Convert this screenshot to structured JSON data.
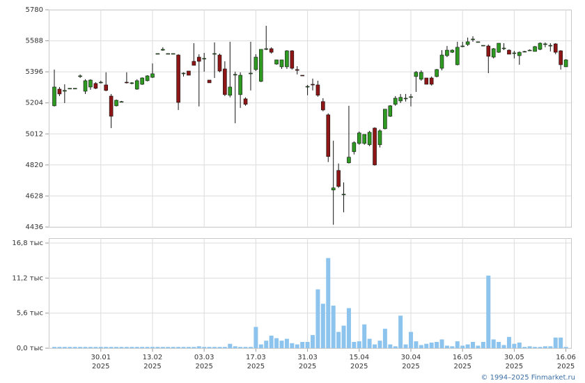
{
  "chart_data": [
    {
      "type": "candlestick",
      "up_color": "#2e9a22",
      "down_color": "#8e1616",
      "grid": true,
      "ylim": [
        4436,
        5780
      ],
      "yticks": [
        4436,
        4628,
        4820,
        5012,
        5204,
        5396,
        5588,
        5780
      ],
      "categories": [
        null,
        null,
        null,
        null,
        null,
        null,
        null,
        null,
        null,
        "30.01",
        null,
        null,
        null,
        null,
        null,
        null,
        null,
        null,
        null,
        "13.02",
        null,
        null,
        null,
        null,
        null,
        null,
        null,
        null,
        null,
        "03.03",
        null,
        null,
        null,
        null,
        null,
        null,
        null,
        null,
        null,
        "17.03",
        null,
        null,
        null,
        null,
        null,
        null,
        null,
        null,
        null,
        "31.03",
        null,
        null,
        null,
        null,
        null,
        null,
        null,
        null,
        null,
        "15.04",
        null,
        null,
        null,
        null,
        null,
        null,
        null,
        null,
        null,
        "30.04",
        null,
        null,
        null,
        null,
        null,
        null,
        null,
        null,
        null,
        "16.05",
        null,
        null,
        null,
        null,
        null,
        null,
        null,
        null,
        null,
        "30.05",
        null,
        null,
        null,
        null,
        null,
        null,
        null,
        null,
        null,
        "16.06"
      ],
      "year": "2025",
      "open": [
        5186,
        5289,
        5276,
        5294,
        5294,
        5367,
        5276,
        5302,
        5324,
        5328,
        5315,
        5246,
        5186,
        5212,
        5332,
        5328,
        5289,
        5319,
        5341,
        5362,
        5509,
        5530,
        5509,
        5509,
        5500,
        5384,
        5401,
        5461,
        5487,
        5479,
        5345,
        5509,
        5500,
        5414,
        5251,
        5380,
        5255,
        5229,
        5388,
        5410,
        5337,
        5539,
        5539,
        5444,
        5427,
        5427,
        5526,
        5410,
        5375,
        5306,
        5319,
        5315,
        5212,
        5130,
        4665,
        4786,
        4639,
        4833,
        4902,
        4953,
        4953,
        4945,
        5048,
        4945,
        5044,
        5121,
        5195,
        5216,
        5233,
        5242,
        5367,
        5350,
        5358,
        5358,
        5367,
        5418,
        5496,
        5517,
        5440,
        5556,
        5565,
        5599,
        5582,
        5560,
        5556,
        5487,
        5517,
        5543,
        5530,
        5513,
        5496,
        5522,
        5530,
        5522,
        5535,
        5569,
        5560,
        5569,
        5526,
        5427
      ],
      "high": [
        5410,
        5302,
        5319,
        5294,
        5294,
        5380,
        5350,
        5350,
        5332,
        5341,
        5393,
        5259,
        5225,
        5216,
        5393,
        5332,
        5350,
        5362,
        5375,
        5448,
        5509,
        5548,
        5509,
        5509,
        5505,
        5393,
        5401,
        5573,
        5505,
        5513,
        5345,
        5578,
        5509,
        5461,
        5582,
        5397,
        5393,
        5238,
        5582,
        5505,
        5535,
        5681,
        5548,
        5470,
        5470,
        5530,
        5530,
        5431,
        5375,
        5315,
        5354,
        5341,
        5233,
        5139,
        4970,
        4829,
        4712,
        5186,
        4966,
        5027,
        5009,
        5031,
        5053,
        5040,
        5165,
        5190,
        5246,
        5259,
        5259,
        5259,
        5401,
        5405,
        5358,
        5367,
        5414,
        5530,
        5556,
        5535,
        5582,
        5582,
        5608,
        5616,
        5582,
        5560,
        5565,
        5543,
        5573,
        5573,
        5535,
        5526,
        5522,
        5526,
        5535,
        5556,
        5578,
        5578,
        5573,
        5573,
        5530,
        5474
      ],
      "low": [
        5182,
        5246,
        5203,
        5294,
        5294,
        5358,
        5259,
        5285,
        5289,
        5324,
        5276,
        5048,
        5182,
        5212,
        5324,
        5319,
        5285,
        5315,
        5337,
        5358,
        5509,
        5526,
        5509,
        5509,
        5160,
        5367,
        5375,
        5436,
        5182,
        5397,
        5328,
        5358,
        5393,
        5246,
        5238,
        5078,
        5173,
        5186,
        5281,
        5401,
        5332,
        5530,
        5509,
        5440,
        5414,
        5414,
        5410,
        5380,
        5371,
        5251,
        5281,
        5242,
        5152,
        4838,
        4450,
        4678,
        4527,
        4829,
        4885,
        4945,
        4945,
        4936,
        4816,
        4928,
        5040,
        5117,
        5186,
        5203,
        5212,
        5182,
        5272,
        5341,
        5319,
        5311,
        5362,
        5405,
        5487,
        5513,
        5436,
        5548,
        5556,
        5582,
        5582,
        5560,
        5388,
        5479,
        5513,
        5530,
        5505,
        5479,
        5440,
        5517,
        5526,
        5522,
        5530,
        5548,
        5522,
        5505,
        5410,
        5427
      ],
      "close": [
        5302,
        5259,
        5281,
        5294,
        5294,
        5371,
        5341,
        5345,
        5294,
        5332,
        5281,
        5121,
        5220,
        5212,
        5328,
        5328,
        5341,
        5358,
        5371,
        5384,
        5509,
        5535,
        5509,
        5509,
        5207,
        5388,
        5375,
        5436,
        5461,
        5479,
        5328,
        5509,
        5401,
        5255,
        5302,
        5380,
        5375,
        5195,
        5388,
        5487,
        5535,
        5539,
        5517,
        5470,
        5470,
        5526,
        5418,
        5405,
        5371,
        5306,
        5315,
        5251,
        5160,
        4872,
        4678,
        4687,
        4639,
        4868,
        4958,
        5018,
        5009,
        5022,
        4820,
        5031,
        5165,
        5186,
        5233,
        5238,
        5233,
        5242,
        5393,
        5393,
        5319,
        5319,
        5410,
        5500,
        5530,
        5530,
        5548,
        5556,
        5582,
        5599,
        5582,
        5560,
        5492,
        5539,
        5573,
        5543,
        5505,
        5513,
        5517,
        5522,
        5530,
        5552,
        5573,
        5569,
        5560,
        5517,
        5440,
        5470
      ]
    },
    {
      "type": "bar",
      "color": "#8cc4ee",
      "ylim": [
        0,
        16.8
      ],
      "yticks": [
        {
          "value": 0,
          "label": "0,0 тыс"
        },
        {
          "value": 5.6,
          "label": "5,6 тыс"
        },
        {
          "value": 11.2,
          "label": "11,2 тыс"
        },
        {
          "value": 16.8,
          "label": "16,8 тыс"
        }
      ],
      "values": [
        0.2,
        0.2,
        0.2,
        0.2,
        0.2,
        0.2,
        0.2,
        0.2,
        0.2,
        0.2,
        0.2,
        0.2,
        0.2,
        0.2,
        0.2,
        0.2,
        0.2,
        0.2,
        0.2,
        0.2,
        0.2,
        0.2,
        0.2,
        0.2,
        0.2,
        0.2,
        0.2,
        0.2,
        0.3,
        0.2,
        0.2,
        0.2,
        0.2,
        0.2,
        0.7,
        0.3,
        0.2,
        0.2,
        0.2,
        3.4,
        0.6,
        1.2,
        2.0,
        1.6,
        1.2,
        1.5,
        0.8,
        0.6,
        1.0,
        1.0,
        2.1,
        9.4,
        7.1,
        14.4,
        6.8,
        2.6,
        3.6,
        6.4,
        1.0,
        1.1,
        3.8,
        1.5,
        0.6,
        1.2,
        3.1,
        0.6,
        0.3,
        5.2,
        0.6,
        2.6,
        1.1,
        0.5,
        0.7,
        0.9,
        1.0,
        1.4,
        0.4,
        0.3,
        1.1,
        0.4,
        0.6,
        1.0,
        0.4,
        1.0,
        11.6,
        1.4,
        1.0,
        0.5,
        1.8,
        0.7,
        0.9,
        0.2,
        0.3,
        0.2,
        0.2,
        0.3,
        0.3,
        1.7,
        1.7,
        0.2
      ]
    }
  ],
  "footer": "© 1994–2025 Finmarket.ru"
}
